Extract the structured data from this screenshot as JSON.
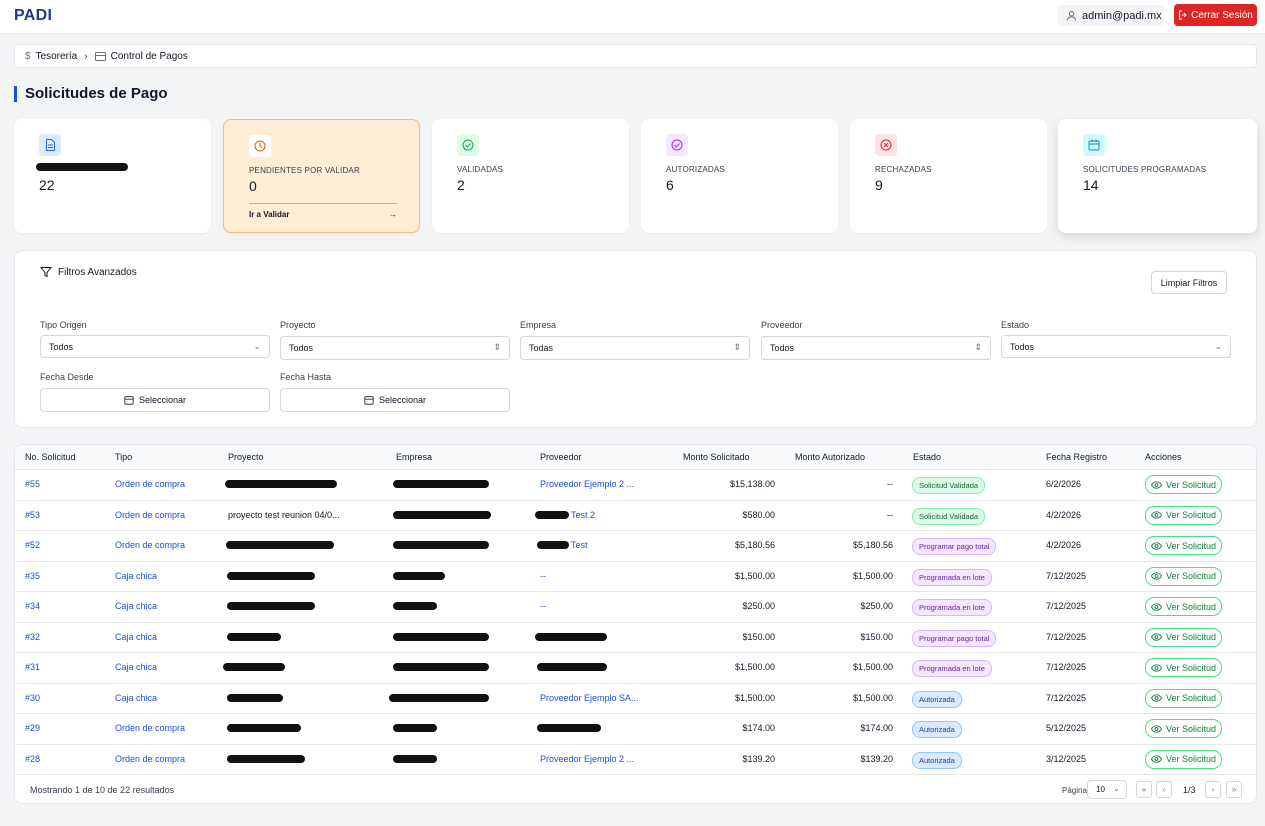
{
  "header": {
    "brand": "PADI",
    "user": "admin@padi.mx",
    "logout": "Cerrar Sesión"
  },
  "breadcrumb": {
    "item1": "Tesorería",
    "item2": "Control de Pagos"
  },
  "page": {
    "title": "Solicitudes de Pago"
  },
  "colors": {
    "accent": "#1d4ed8",
    "danger": "#dc2626",
    "highlight_bg": "#ffedd5"
  },
  "cards": [
    {
      "label": "",
      "value": "22",
      "icon": "document-icon"
    },
    {
      "label": "PENDIENTES POR VALIDAR",
      "value": "0",
      "link": "Ir a Validar",
      "icon": "clock-icon"
    },
    {
      "label": "VALIDADAS",
      "value": "2",
      "icon": "check-circle-icon"
    },
    {
      "label": "AUTORIZADAS",
      "value": "6",
      "icon": "check-badge-icon"
    },
    {
      "label": "RECHAZADAS",
      "value": "9",
      "icon": "x-circle-icon"
    },
    {
      "label": "SOLICITUDES PROGRAMADAS",
      "value": "14",
      "icon": "calendar-icon"
    }
  ],
  "filters": {
    "title": "Filtros Avanzados",
    "clear": "Limpiar Filtros",
    "tipo_label": "Tipo Origen",
    "tipo_value": "Todos",
    "proyecto_label": "Proyecto",
    "proyecto_value": "Todos",
    "empresa_label": "Empresa",
    "empresa_value": "Todas",
    "proveedor_label": "Proveedor",
    "proveedor_value": "Todos",
    "estado_label": "Estado",
    "estado_value": "Todos",
    "desde_label": "Fecha Desde",
    "desde_value": "Seleccionar",
    "hasta_label": "Fecha Hasta",
    "hasta_value": "Seleccionar"
  },
  "table": {
    "headers": [
      "No. Solicitud",
      "Tipo",
      "Proyecto",
      "Empresa",
      "Proveedor",
      "Monto Solicitado",
      "Monto Autorizado",
      "Estado",
      "Fecha Registro",
      "Acciones"
    ],
    "action_label": "Ver Solicitud",
    "rows": [
      {
        "no": "#55",
        "tipo": "Orden de compra",
        "proyecto": "",
        "empresa": "",
        "proveedor": "Proveedor Ejemplo 2 ...",
        "solicitado": "$15,138.00",
        "autorizado": "--",
        "estado": "Solicitud Validada",
        "fecha": "6/2/2026"
      },
      {
        "no": "#53",
        "tipo": "Orden de compra",
        "proyecto": "proyecto test reunion 04/0...",
        "empresa": "",
        "proveedor": "Test 2",
        "solicitado": "$580.00",
        "autorizado": "--",
        "estado": "Solicitud Validada",
        "fecha": "4/2/2026"
      },
      {
        "no": "#52",
        "tipo": "Orden de compra",
        "proyecto": "",
        "empresa": "",
        "proveedor": "Test",
        "solicitado": "$5,180.56",
        "autorizado": "$5,180.56",
        "estado": "Programar pago total",
        "fecha": "4/2/2026"
      },
      {
        "no": "#35",
        "tipo": "Caja chica",
        "proyecto": "",
        "empresa": "",
        "proveedor": "--",
        "solicitado": "$1,500.00",
        "autorizado": "$1,500.00",
        "estado": "Programada en lote",
        "fecha": "7/12/2025"
      },
      {
        "no": "#34",
        "tipo": "Caja chica",
        "proyecto": "",
        "empresa": "",
        "proveedor": "--",
        "solicitado": "$250.00",
        "autorizado": "$250.00",
        "estado": "Programada en lote",
        "fecha": "7/12/2025"
      },
      {
        "no": "#32",
        "tipo": "Caja chica",
        "proyecto": "",
        "empresa": "",
        "proveedor": "",
        "solicitado": "$150.00",
        "autorizado": "$150.00",
        "estado": "Programar pago total",
        "fecha": "7/12/2025"
      },
      {
        "no": "#31",
        "tipo": "Caja chica",
        "proyecto": "",
        "empresa": "",
        "proveedor": "",
        "solicitado": "$1,500.00",
        "autorizado": "$1,500.00",
        "estado": "Programada en lote",
        "fecha": "7/12/2025"
      },
      {
        "no": "#30",
        "tipo": "Caja chica",
        "proyecto": "",
        "empresa": "",
        "proveedor": "Proveedor Ejemplo SA...",
        "solicitado": "$1,500.00",
        "autorizado": "$1,500.00",
        "estado": "Autorizada",
        "fecha": "7/12/2025"
      },
      {
        "no": "#29",
        "tipo": "Orden de compra",
        "proyecto": "",
        "empresa": "",
        "proveedor": "",
        "solicitado": "$174.00",
        "autorizado": "$174.00",
        "estado": "Autorizada",
        "fecha": "5/12/2025"
      },
      {
        "no": "#28",
        "tipo": "Orden de compra",
        "proyecto": "",
        "empresa": "",
        "proveedor": "Proveedor Ejemplo 2 ...",
        "solicitado": "$139.20",
        "autorizado": "$139.20",
        "estado": "Autorizada",
        "fecha": "3/12/2025"
      }
    ]
  },
  "footer": {
    "showing": "Mostrando 1 de 10 de 22 resultados",
    "page_label": "Página",
    "page_size": "10",
    "page_of": "1/3",
    "first": "«",
    "prev": "‹",
    "next": "›",
    "last": "»"
  }
}
